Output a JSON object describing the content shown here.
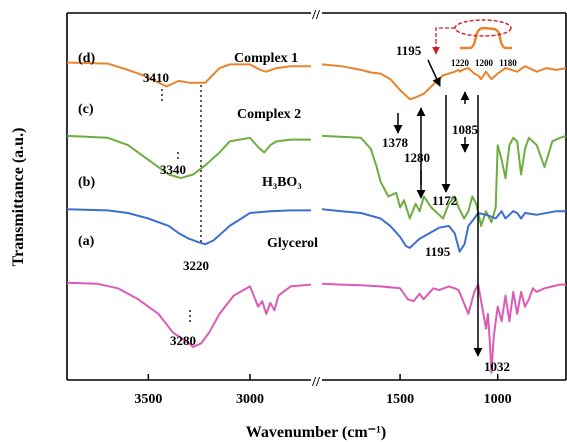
{
  "chart_data": {
    "type": "line",
    "title": "",
    "xlabel": "Wavenumber (cm⁻¹)",
    "ylabel": "Transmittance (a.u.)",
    "x_reversed": true,
    "axis_break": [
      2700,
      1900
    ],
    "xlim_left_panel": [
      3900,
      2700
    ],
    "xlim_right_panel": [
      1900,
      650
    ],
    "x_ticks": [
      "3500",
      "3000",
      "1500",
      "1000"
    ],
    "y_ticks_shown": false,
    "legend": "curve labels printed beside each trace",
    "series": [
      {
        "name": "Complex 1",
        "panel_label": "(d)",
        "color": "#E8842C",
        "offset": 0.86,
        "x": [
          3900,
          3700,
          3600,
          3500,
          3450,
          3410,
          3350,
          3300,
          3220,
          3150,
          3100,
          3000,
          2950,
          2920,
          2870,
          2800,
          2700,
          1900,
          1800,
          1700,
          1650,
          1600,
          1550,
          1500,
          1450,
          1420,
          1378,
          1340,
          1300,
          1280,
          1250,
          1220,
          1200,
          1195,
          1180,
          1150,
          1120,
          1100,
          1085,
          1060,
          1032,
          1000,
          960,
          900,
          860,
          800,
          750,
          700,
          650
        ],
        "y": [
          0.865,
          0.862,
          0.845,
          0.825,
          0.81,
          0.8,
          0.815,
          0.81,
          0.81,
          0.85,
          0.86,
          0.86,
          0.845,
          0.84,
          0.85,
          0.855,
          0.855,
          0.86,
          0.855,
          0.845,
          0.838,
          0.835,
          0.82,
          0.79,
          0.765,
          0.77,
          0.78,
          0.8,
          0.82,
          0.83,
          0.835,
          0.84,
          0.845,
          0.84,
          0.845,
          0.85,
          0.835,
          0.83,
          0.82,
          0.84,
          0.82,
          0.835,
          0.85,
          0.84,
          0.855,
          0.84,
          0.85,
          0.845,
          0.85
        ]
      },
      {
        "name": "Complex 2",
        "panel_label": "(c)",
        "color": "#6DAE3E",
        "offset": 0.66,
        "x": [
          3900,
          3700,
          3600,
          3500,
          3400,
          3340,
          3280,
          3220,
          3150,
          3100,
          3000,
          2960,
          2930,
          2900,
          2870,
          2800,
          2700,
          1900,
          1700,
          1650,
          1620,
          1600,
          1560,
          1520,
          1500,
          1480,
          1450,
          1420,
          1400,
          1378,
          1340,
          1300,
          1280,
          1250,
          1220,
          1200,
          1172,
          1150,
          1130,
          1110,
          1085,
          1060,
          1032,
          1010,
          1000,
          980,
          960,
          940,
          920,
          900,
          880,
          860,
          840,
          800,
          760,
          720,
          680,
          650
        ],
        "y": [
          0.665,
          0.66,
          0.64,
          0.6,
          0.56,
          0.55,
          0.56,
          0.585,
          0.62,
          0.65,
          0.66,
          0.635,
          0.62,
          0.64,
          0.65,
          0.655,
          0.655,
          0.665,
          0.66,
          0.63,
          0.58,
          0.54,
          0.5,
          0.51,
          0.47,
          0.49,
          0.44,
          0.48,
          0.46,
          0.5,
          0.47,
          0.45,
          0.44,
          0.48,
          0.5,
          0.47,
          0.44,
          0.46,
          0.5,
          0.48,
          0.42,
          0.46,
          0.43,
          0.47,
          0.64,
          0.6,
          0.55,
          0.64,
          0.66,
          0.65,
          0.56,
          0.63,
          0.66,
          0.64,
          0.58,
          0.65,
          0.66,
          0.665
        ]
      },
      {
        "name": "H₃BO₃",
        "panel_label": "(b)",
        "color": "#3D6FD1",
        "offset": 0.46,
        "x": [
          3900,
          3700,
          3600,
          3500,
          3400,
          3350,
          3300,
          3250,
          3220,
          3180,
          3100,
          3000,
          2900,
          2800,
          2700,
          1900,
          1800,
          1700,
          1600,
          1550,
          1500,
          1470,
          1450,
          1430,
          1400,
          1350,
          1300,
          1250,
          1220,
          1195,
          1170,
          1150,
          1120,
          1100,
          1060,
          1032,
          1010,
          980,
          960,
          940,
          920,
          900,
          880,
          860,
          800,
          700,
          650
        ],
        "y": [
          0.465,
          0.462,
          0.455,
          0.44,
          0.42,
          0.4,
          0.385,
          0.375,
          0.37,
          0.38,
          0.42,
          0.455,
          0.46,
          0.462,
          0.462,
          0.465,
          0.46,
          0.455,
          0.44,
          0.42,
          0.39,
          0.365,
          0.36,
          0.37,
          0.385,
          0.4,
          0.415,
          0.42,
          0.4,
          0.35,
          0.37,
          0.42,
          0.44,
          0.455,
          0.45,
          0.445,
          0.44,
          0.46,
          0.44,
          0.45,
          0.46,
          0.455,
          0.44,
          0.455,
          0.45,
          0.46,
          0.46
        ]
      },
      {
        "name": "Glycerol",
        "panel_label": "(a)",
        "color": "#DB5CB5",
        "offset": 0.26,
        "x": [
          3900,
          3750,
          3650,
          3550,
          3450,
          3380,
          3300,
          3280,
          3240,
          3200,
          3150,
          3080,
          3000,
          2960,
          2940,
          2920,
          2900,
          2880,
          2860,
          2800,
          2700,
          1900,
          1800,
          1700,
          1600,
          1500,
          1460,
          1430,
          1400,
          1380,
          1330,
          1300,
          1250,
          1220,
          1200,
          1150,
          1120,
          1100,
          1080,
          1060,
          1050,
          1040,
          1032,
          1020,
          1000,
          980,
          960,
          940,
          920,
          900,
          880,
          860,
          840,
          820,
          800,
          760,
          720,
          680,
          650
        ],
        "y": [
          0.265,
          0.262,
          0.25,
          0.22,
          0.18,
          0.13,
          0.1,
          0.09,
          0.1,
          0.13,
          0.18,
          0.23,
          0.255,
          0.2,
          0.215,
          0.18,
          0.21,
          0.19,
          0.23,
          0.255,
          0.26,
          0.262,
          0.26,
          0.258,
          0.255,
          0.25,
          0.22,
          0.215,
          0.235,
          0.22,
          0.25,
          0.245,
          0.255,
          0.25,
          0.245,
          0.18,
          0.24,
          0.26,
          0.2,
          0.14,
          0.18,
          0.1,
          0.02,
          0.12,
          0.2,
          0.16,
          0.23,
          0.16,
          0.24,
          0.18,
          0.24,
          0.2,
          0.22,
          0.25,
          0.24,
          0.25,
          0.255,
          0.26,
          0.26
        ]
      }
    ],
    "annotations": [
      {
        "text": "3410"
      },
      {
        "text": "3340"
      },
      {
        "text": "3220"
      },
      {
        "text": "3280"
      },
      {
        "text": "1195"
      },
      {
        "text": "1378"
      },
      {
        "text": "1280"
      },
      {
        "text": "1085"
      },
      {
        "text": "1172"
      },
      {
        "text": "1195"
      },
      {
        "text": "1032"
      }
    ],
    "inset": {
      "ticks": [
        "1220",
        "1200",
        "1180"
      ]
    }
  },
  "break_mark": "//"
}
